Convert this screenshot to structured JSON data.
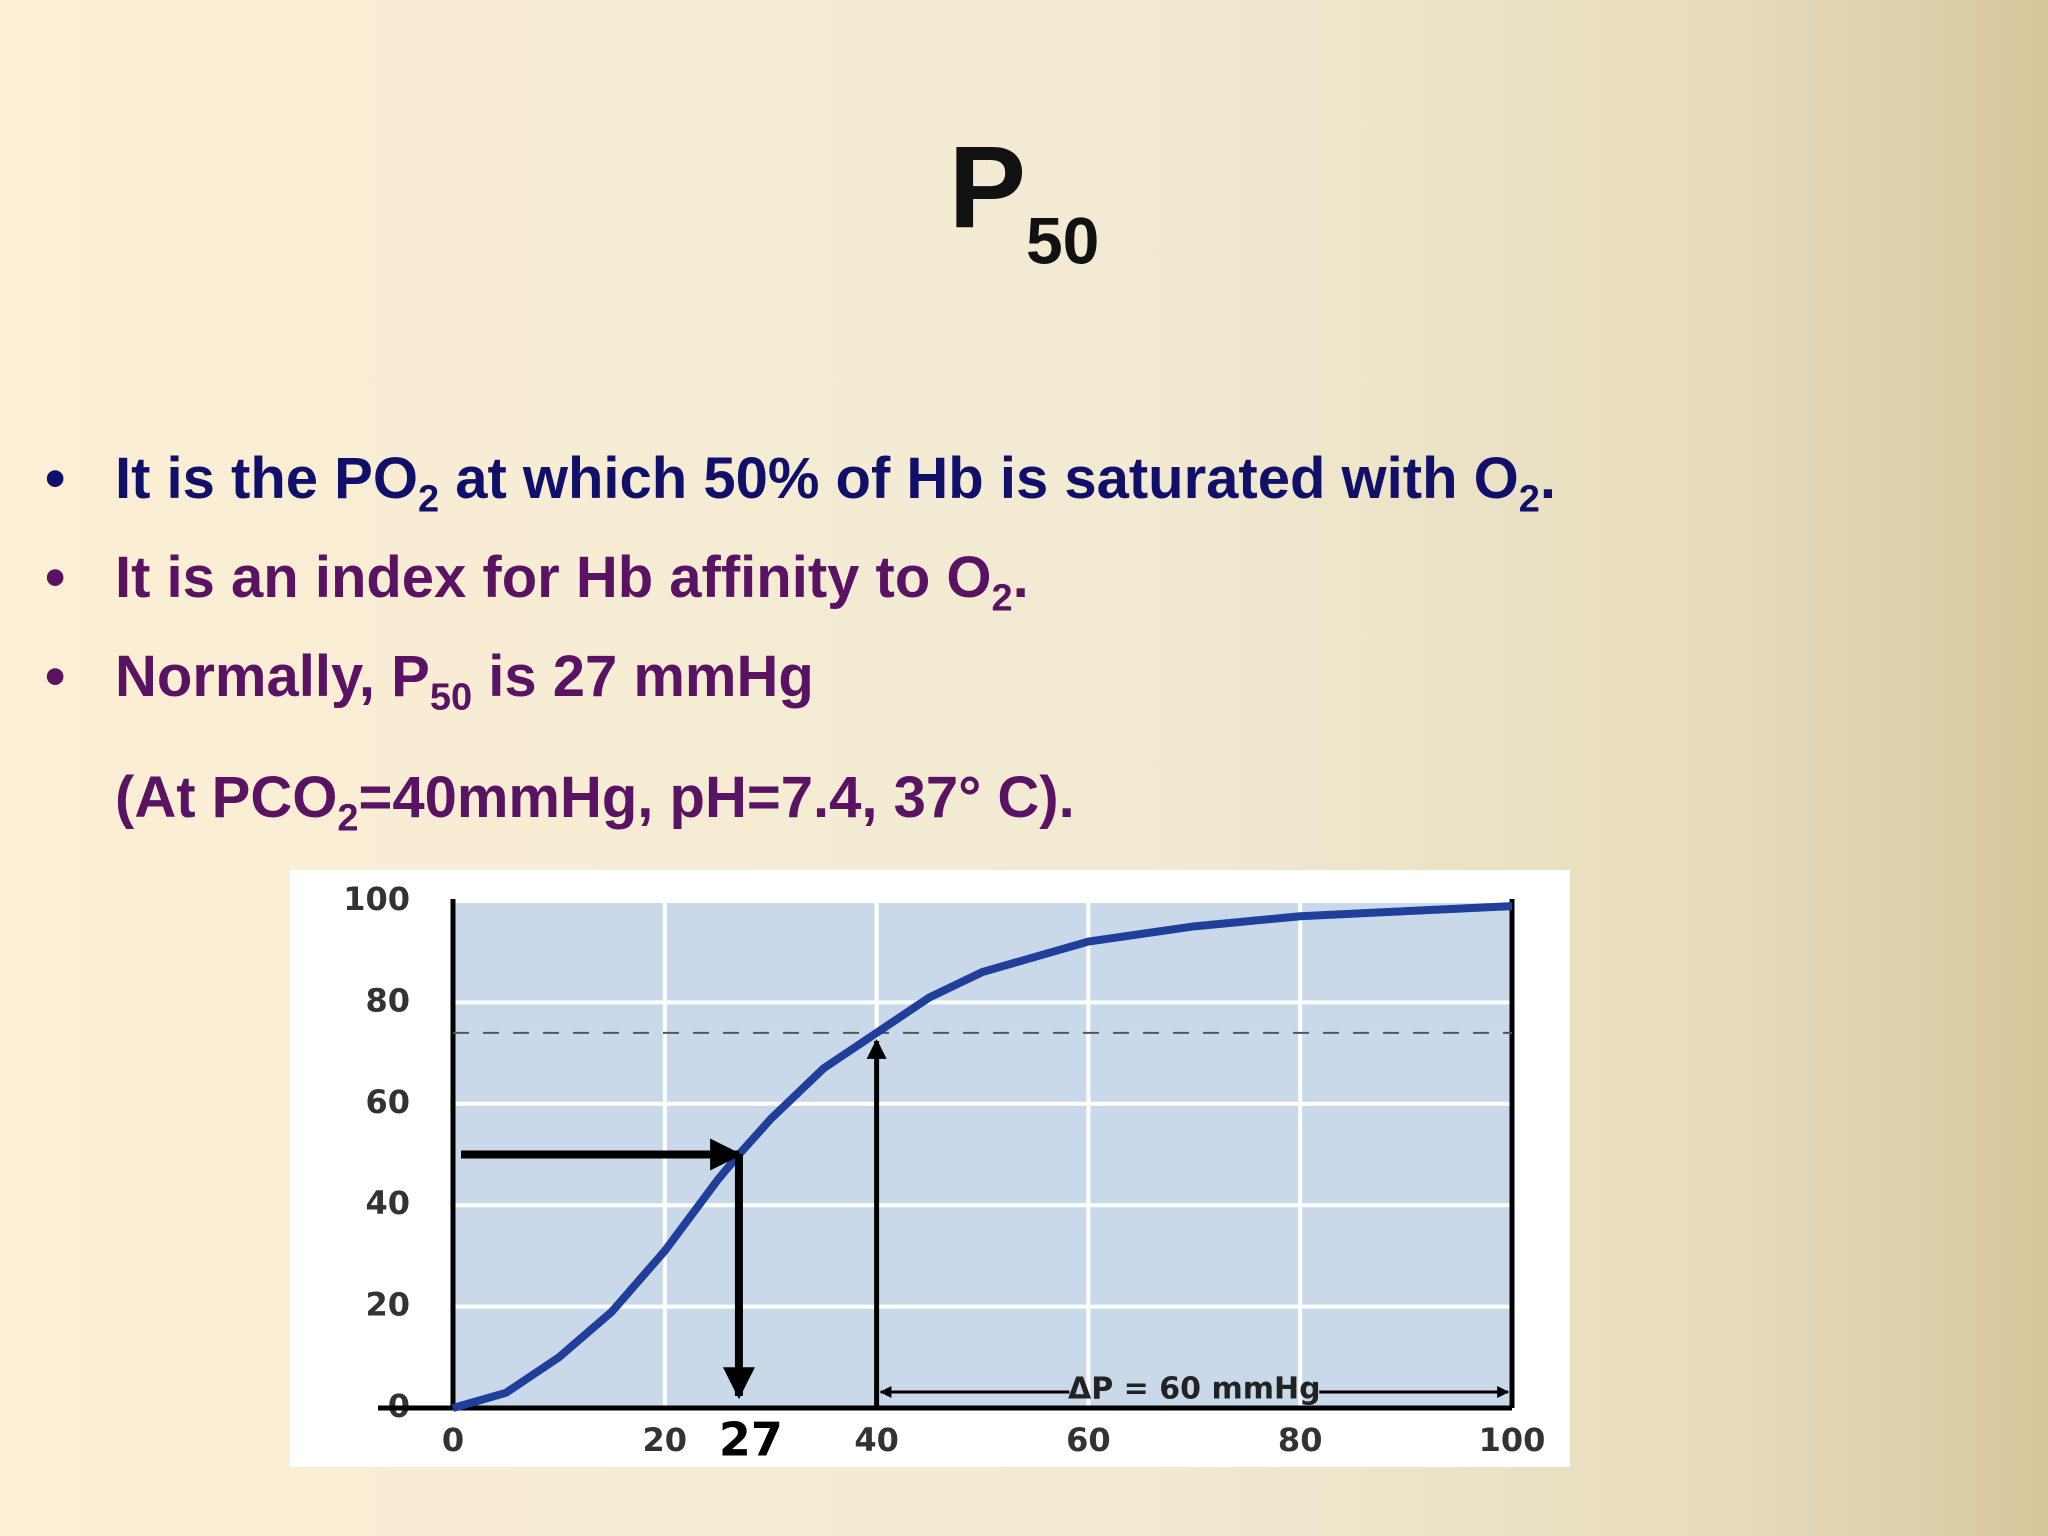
{
  "title": [
    "P",
    "50"
  ],
  "bullets": [
    [
      "It is the PO",
      "2",
      " at which 50% of Hb is saturated with O",
      "2",
      "."
    ],
    [
      "It is an index for Hb affinity to O",
      "2",
      "."
    ],
    [
      "Normally, P",
      "50",
      " is 27 mmHg"
    ]
  ],
  "note": [
    "(At PCO",
    "2",
    "=40mmHg, pH=7.4, 37° C)."
  ],
  "chart_data": {
    "type": "line",
    "xlim": [
      0,
      100
    ],
    "ylim": [
      0,
      100
    ],
    "xticks": [
      0,
      20,
      40,
      60,
      80,
      100
    ],
    "yticks": [
      0,
      20,
      40,
      60,
      80,
      100
    ],
    "grid": true,
    "series": [
      {
        "color": "#1f3f9a",
        "x": [
          0,
          5,
          10,
          15,
          20,
          25,
          27,
          30,
          35,
          40,
          45,
          50,
          60,
          70,
          80,
          90,
          100
        ],
        "values": [
          0,
          3,
          10,
          19,
          31,
          45,
          50,
          57,
          67,
          74,
          81,
          86,
          92,
          95,
          97,
          98,
          99
        ]
      }
    ],
    "annotations": {
      "p50": {
        "x": 27,
        "y": 50,
        "label": "27"
      },
      "reference": {
        "x": 40,
        "y": 74
      },
      "delta_p": {
        "from": 40,
        "to": 100,
        "label": "ΔP = 60 mmHg"
      }
    }
  }
}
